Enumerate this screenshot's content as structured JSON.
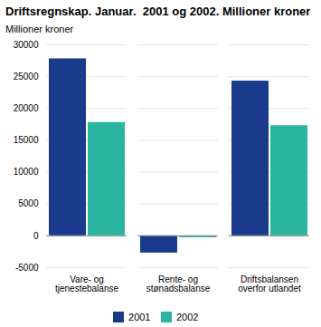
{
  "chart_data": {
    "type": "bar",
    "title": "Driftsregnskap. Januar.  2001 og 2002. Millioner kroner",
    "ylabel": "Millioner kroner",
    "categories": [
      "Vare- og\ntjenestebalanse",
      "Rente- og\nstønadsbalanse",
      "Driftsbalansen\noverfor utlandet"
    ],
    "series": [
      {
        "name": "2001",
        "color": "#1a3a8c",
        "values": [
          27800,
          -2700,
          24300
        ]
      },
      {
        "name": "2002",
        "color": "#2ab5a0",
        "values": [
          17800,
          -300,
          17300
        ]
      }
    ],
    "ylim": [
      -5000,
      30000
    ],
    "yticks": [
      -5000,
      0,
      5000,
      10000,
      15000,
      20000,
      25000,
      30000
    ],
    "grid": true,
    "legend": "bottom"
  }
}
